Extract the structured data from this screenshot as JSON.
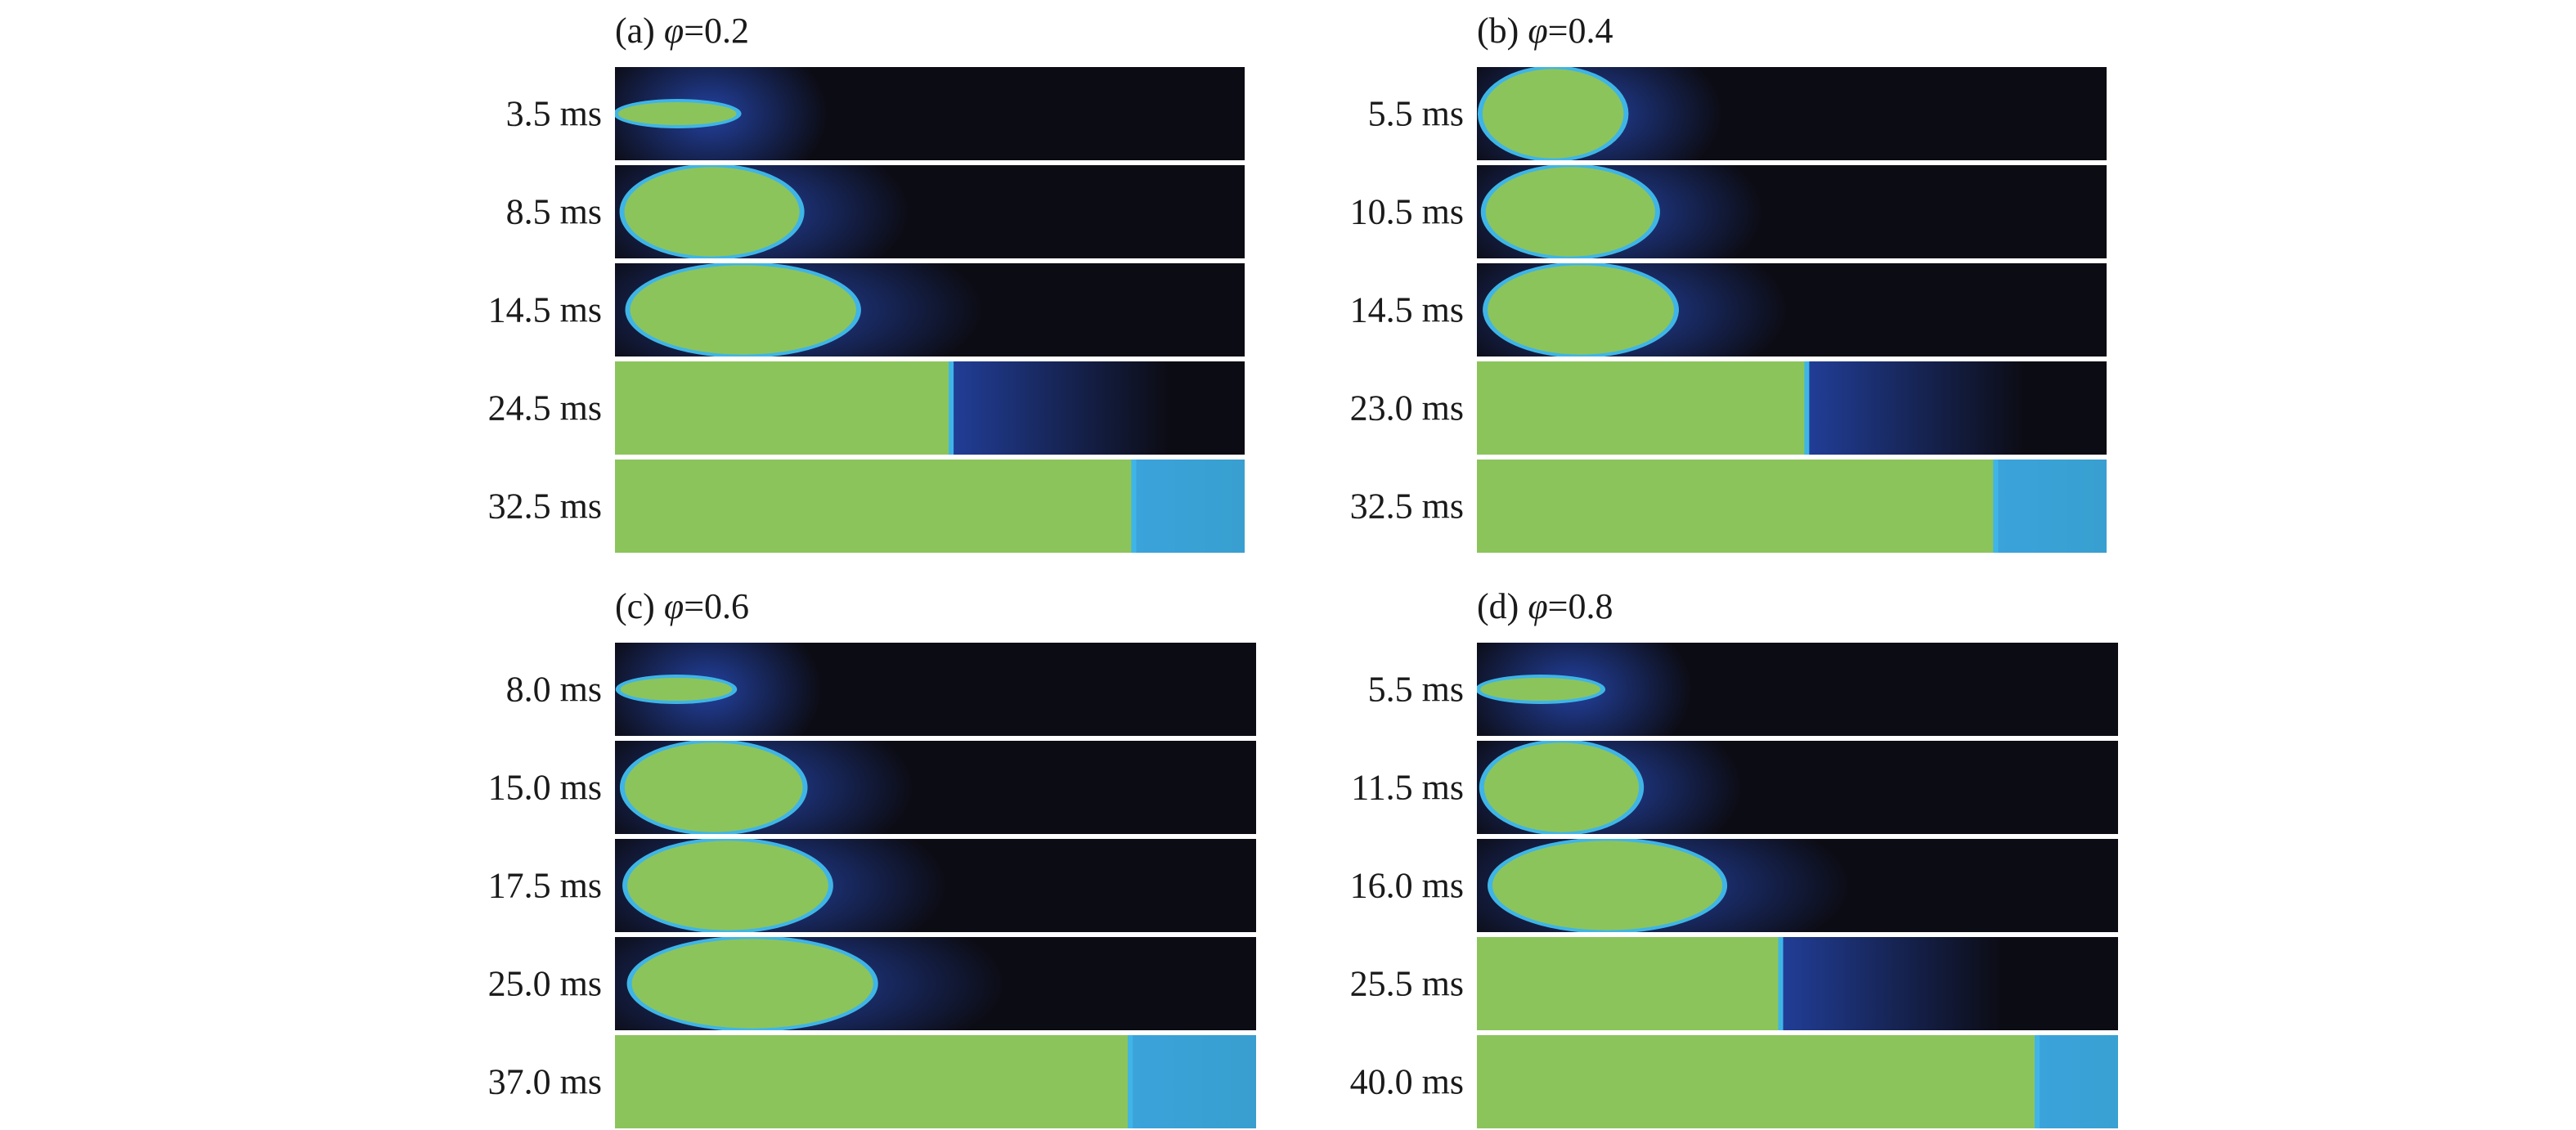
{
  "panels": [
    {
      "id": "a",
      "label": "(a) ",
      "phi_symbol": "φ",
      "phi_value": "=0.2",
      "frames": [
        {
          "time": "3.5 ms",
          "flame_front": 0.18
        },
        {
          "time": "8.5 ms",
          "flame_front": 0.28
        },
        {
          "time": "14.5 ms",
          "flame_front": 0.37
        },
        {
          "time": "24.5 ms",
          "flame_front": 0.53
        },
        {
          "time": "32.5 ms",
          "flame_front": 0.82
        }
      ]
    },
    {
      "id": "b",
      "label": "(b) ",
      "phi_symbol": "φ",
      "phi_value": "=0.4",
      "frames": [
        {
          "time": "5.5 ms",
          "flame_front": 0.22
        },
        {
          "time": "10.5 ms",
          "flame_front": 0.27
        },
        {
          "time": "14.5 ms",
          "flame_front": 0.3
        },
        {
          "time": "23.0 ms",
          "flame_front": 0.52
        },
        {
          "time": "32.5 ms",
          "flame_front": 0.82
        }
      ]
    },
    {
      "id": "c",
      "label": "(c) ",
      "phi_symbol": "φ",
      "phi_value": "=0.6",
      "frames": [
        {
          "time": "8.0 ms",
          "flame_front": 0.17
        },
        {
          "time": "15.0 ms",
          "flame_front": 0.28
        },
        {
          "time": "17.5 ms",
          "flame_front": 0.32
        },
        {
          "time": "25.0 ms",
          "flame_front": 0.39
        },
        {
          "time": "37.0 ms",
          "flame_front": 0.8
        }
      ]
    },
    {
      "id": "d",
      "label": "(d) ",
      "phi_symbol": "φ",
      "phi_value": "=0.8",
      "frames": [
        {
          "time": "5.5 ms",
          "flame_front": 0.18
        },
        {
          "time": "11.5 ms",
          "flame_front": 0.24
        },
        {
          "time": "16.0 ms",
          "flame_front": 0.37
        },
        {
          "time": "25.5 ms",
          "flame_front": 0.47
        },
        {
          "time": "40.0 ms",
          "flame_front": 0.87
        }
      ]
    }
  ],
  "colors": {
    "background": "#ffffff",
    "dark": "#0c0c14",
    "flame": "#8cc45c",
    "edge": "#3fb5e6",
    "glow": "#2444a8"
  }
}
